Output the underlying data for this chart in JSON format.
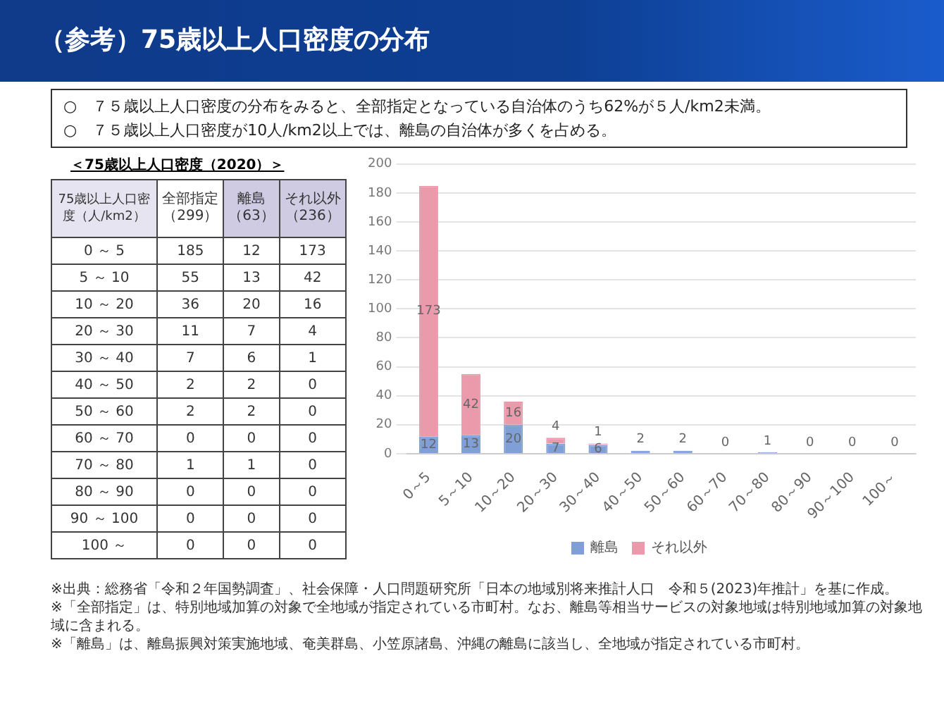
{
  "chart_data": [
    {
      "type": "other",
      "title": "（参考）75歳以上人口密度の分布",
      "annotations": [
        "○　７５歳以上人口密度の分布をみると、全部指定となっている自治体のうち62%が５人/km2未満。",
        "○　７５歳以上人口密度が10人/km2以上では、離島の自治体が多くを占める。"
      ]
    },
    {
      "type": "heatmap",
      "title": "＜75歳以上人口密度（2020）＞",
      "ylabel": "75歳以上人口密度（人/km2）",
      "categories": [
        "全部指定（299）",
        "離島（63）",
        "それ以外（236）"
      ],
      "y_categories": [
        "0 ～ 5",
        "5 ～ 10",
        "10 ～ 20",
        "20 ～ 30",
        "30 ～ 40",
        "40 ～ 50",
        "50 ～ 60",
        "60 ～ 70",
        "70 ～ 80",
        "80 ～ 90",
        "90 ～ 100",
        "100 ～"
      ],
      "cells": [
        [
          185,
          12,
          173
        ],
        [
          55,
          13,
          42
        ],
        [
          36,
          20,
          16
        ],
        [
          11,
          7,
          4
        ],
        [
          7,
          6,
          1
        ],
        [
          2,
          2,
          0
        ],
        [
          2,
          2,
          0
        ],
        [
          0,
          0,
          0
        ],
        [
          1,
          1,
          0
        ],
        [
          0,
          0,
          0
        ],
        [
          0,
          0,
          0
        ],
        [
          0,
          0,
          0
        ]
      ],
      "data_labels": true
    },
    {
      "type": "bar",
      "categories": [
        "0～5",
        "5～10",
        "10～20",
        "20～30",
        "30～40",
        "40～50",
        "50～60",
        "60～70",
        "70～80",
        "80～90",
        "90～100",
        "100～"
      ],
      "series": [
        {
          "name": "離島",
          "color": "#7f9fd6",
          "values": [
            12,
            13,
            20,
            7,
            6,
            2,
            2,
            0,
            1,
            0,
            0,
            0
          ],
          "value_labels": [
            "12",
            "13",
            "20",
            "7",
            "6",
            "2",
            "2",
            "0",
            "1",
            "0",
            "0",
            "0"
          ]
        },
        {
          "name": "それ以外",
          "color": "#eb9aab",
          "values": [
            173,
            42,
            16,
            4,
            1,
            0,
            0,
            0,
            0,
            0,
            0,
            0
          ],
          "value_labels": [
            "173",
            "42",
            "16",
            "4",
            "1",
            null,
            null,
            null,
            null,
            null,
            null,
            null
          ]
        }
      ],
      "stacked": true,
      "legend": "bottom",
      "grid": "y",
      "ylim": [
        0,
        200
      ],
      "yticks": [
        0,
        20,
        40,
        60,
        80,
        100,
        120,
        140,
        160,
        180,
        200
      ],
      "annotations": [
        "※出典：総務省「令和２年国勢調査」、社会保障・人口問題研究所「日本の地域別将来推計人口　令和５(2023)年推計」を基に作成。",
        "※「全部指定」は、特別地域加算の対象で全地域が指定されている市町村。なお、離島等相当サービスの対象地域は特別地域加算の対象地域に含まれる。",
        "※「離島」は、離島振興対策実施地域、奄美群島、小笠原諸島、沖縄の離島に該当し、全地域が指定されている市町村。"
      ]
    }
  ]
}
